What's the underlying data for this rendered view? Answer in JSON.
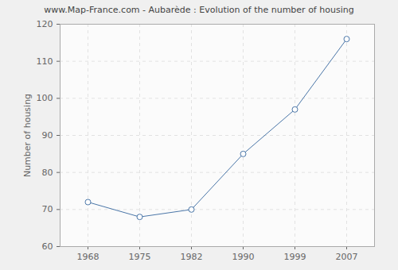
{
  "chart_data": {
    "type": "line",
    "title": "www.Map-France.com - Aubarède : Evolution of the number of housing",
    "y_label": "Number of housing",
    "categories": [
      "1968",
      "1975",
      "1982",
      "1990",
      "1999",
      "2007"
    ],
    "values": [
      72,
      68,
      70,
      85,
      97,
      116
    ],
    "color": "#4a76a8",
    "marker": "circle",
    "ylim": [
      60,
      120
    ],
    "yticks": [
      60,
      70,
      80,
      90,
      100,
      110,
      120
    ],
    "grid": true
  }
}
